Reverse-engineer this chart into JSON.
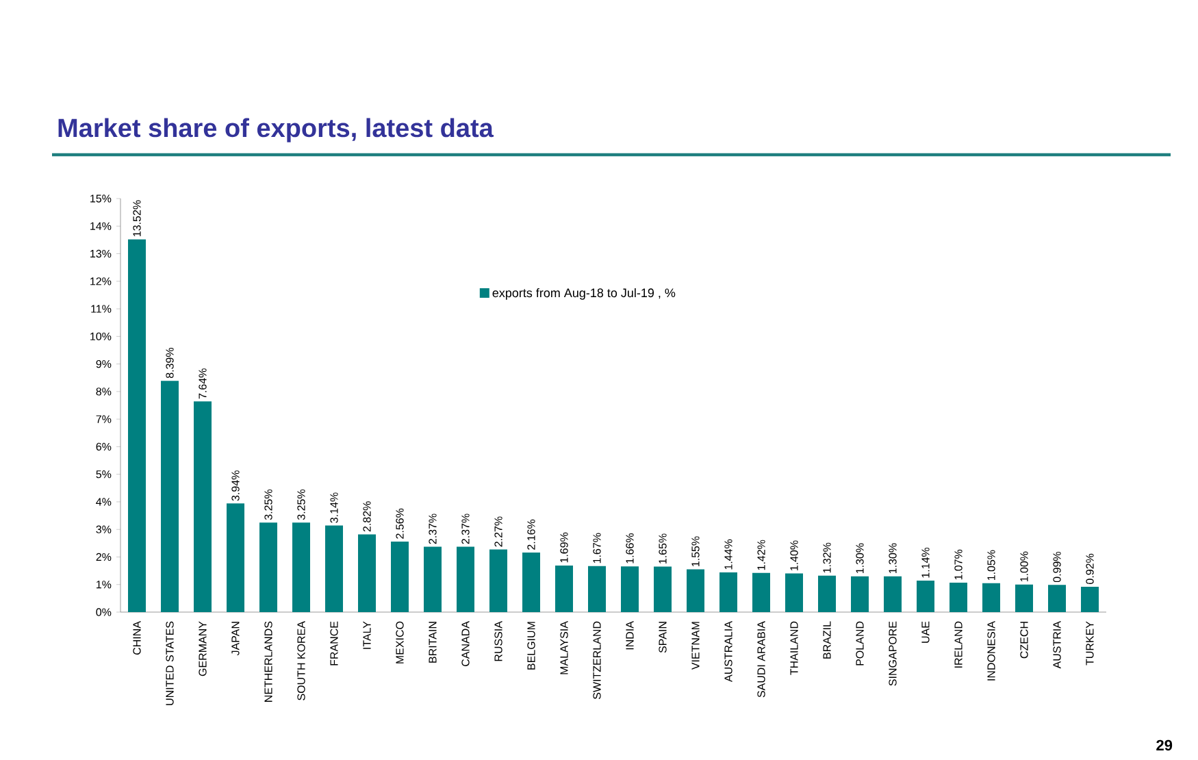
{
  "chart_data": {
    "type": "bar",
    "title": "Market share of exports, latest data",
    "categories": [
      "CHINA",
      "UNITED STATES",
      "GERMANY",
      "JAPAN",
      "NETHERLANDS",
      "SOUTH KOREA",
      "FRANCE",
      "ITALY",
      "MEXICO",
      "BRITAIN",
      "CANADA",
      "RUSSIA",
      "BELGIUM",
      "MALAYSIA",
      "SWITZERLAND",
      "INDIA",
      "SPAIN",
      "VIETNAM",
      "AUSTRALIA",
      "SAUDI ARABIA",
      "THAILAND",
      "BRAZIL",
      "POLAND",
      "SINGAPORE",
      "UAE",
      "IRELAND",
      "INDONESIA",
      "CZECH",
      "AUSTRIA",
      "TURKEY"
    ],
    "series": [
      {
        "name": "exports from Aug-18 to Jul-19 , %",
        "color": "#008080",
        "values": [
          13.52,
          8.39,
          7.64,
          3.94,
          3.25,
          3.25,
          3.14,
          2.82,
          2.56,
          2.37,
          2.37,
          2.27,
          2.16,
          1.69,
          1.67,
          1.66,
          1.65,
          1.55,
          1.44,
          1.42,
          1.4,
          1.32,
          1.3,
          1.3,
          1.14,
          1.07,
          1.05,
          1.0,
          0.99,
          0.92
        ],
        "value_labels": [
          "13.52%",
          "8.39%",
          "7.64%",
          "3.94%",
          "3.25%",
          "3.25%",
          "3.14%",
          "2.82%",
          "2.56%",
          "2.37%",
          "2.37%",
          "2.27%",
          "2.16%",
          "1.69%",
          "1.67%",
          "1.66%",
          "1.65%",
          "1.55%",
          "1.44%",
          "1.42%",
          "1.40%",
          "1.32%",
          "1.30%",
          "1.30%",
          "1.14%",
          "1.07%",
          "1.05%",
          "1.00%",
          "0.99%",
          "0.92%"
        ]
      }
    ],
    "ylim": [
      0,
      15
    ],
    "yticks": [
      {
        "value": 0,
        "label": "0%"
      },
      {
        "value": 1,
        "label": "1%"
      },
      {
        "value": 2,
        "label": "2%"
      },
      {
        "value": 3,
        "label": "3%"
      },
      {
        "value": 4,
        "label": "4%"
      },
      {
        "value": 5,
        "label": "5%"
      },
      {
        "value": 6,
        "label": "6%"
      },
      {
        "value": 7,
        "label": "7%"
      },
      {
        "value": 8,
        "label": "8%"
      },
      {
        "value": 9,
        "label": "9%"
      },
      {
        "value": 10,
        "label": "10%"
      },
      {
        "value": 11,
        "label": "11%"
      },
      {
        "value": 12,
        "label": "12%"
      },
      {
        "value": 13,
        "label": "13%"
      },
      {
        "value": 14,
        "label": "14%"
      },
      {
        "value": 15,
        "label": "15%"
      }
    ],
    "legend": "top",
    "annotations": [
      "29"
    ]
  }
}
